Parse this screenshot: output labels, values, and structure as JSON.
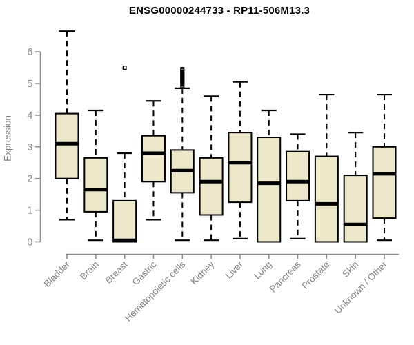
{
  "title": "ENSG00000244733 - RP11-506M13.3",
  "chart_data": {
    "type": "boxplot",
    "title": "ENSG00000244733 - RP11-506M13.3",
    "xlabel": "",
    "ylabel": "Expression",
    "ylim": [
      0,
      6.7
    ],
    "yticks": [
      0,
      1,
      2,
      3,
      4,
      5,
      6
    ],
    "grid": false,
    "legend": "none",
    "categories": [
      "Bladder",
      "Brain",
      "Breast",
      "Gastric",
      "Hematopoietic cells",
      "Kidney",
      "Liver",
      "Lung",
      "Pancreas",
      "Prostate",
      "Skin",
      "Unknown / Other"
    ],
    "boxes": [
      {
        "category": "Bladder",
        "whisker_low": 0.7,
        "q1": 2.0,
        "median": 3.1,
        "q3": 4.05,
        "whisker_high": 6.65,
        "outliers": []
      },
      {
        "category": "Brain",
        "whisker_low": 0.05,
        "q1": 0.95,
        "median": 1.65,
        "q3": 2.65,
        "whisker_high": 4.15,
        "outliers": []
      },
      {
        "category": "Breast",
        "whisker_low": 0.0,
        "q1": 0.0,
        "median": 0.05,
        "q3": 1.3,
        "whisker_high": 2.8,
        "outliers": [
          5.5
        ]
      },
      {
        "category": "Gastric",
        "whisker_low": 0.7,
        "q1": 1.9,
        "median": 2.8,
        "q3": 3.35,
        "whisker_high": 4.45,
        "outliers": []
      },
      {
        "category": "Hematopoietic cells",
        "whisker_low": 0.05,
        "q1": 1.55,
        "median": 2.25,
        "q3": 2.9,
        "whisker_high": 4.85,
        "outliers": [
          4.9,
          4.94,
          4.98,
          5.02,
          5.06,
          5.1,
          5.14,
          5.18,
          5.22,
          5.26,
          5.3,
          5.34,
          5.38,
          5.42,
          5.46
        ]
      },
      {
        "category": "Kidney",
        "whisker_low": 0.05,
        "q1": 0.85,
        "median": 1.9,
        "q3": 2.65,
        "whisker_high": 4.6,
        "outliers": []
      },
      {
        "category": "Liver",
        "whisker_low": 0.1,
        "q1": 1.25,
        "median": 2.5,
        "q3": 3.45,
        "whisker_high": 5.05,
        "outliers": []
      },
      {
        "category": "Lung",
        "whisker_low": 0.0,
        "q1": 0.0,
        "median": 1.85,
        "q3": 3.3,
        "whisker_high": 4.15,
        "outliers": []
      },
      {
        "category": "Pancreas",
        "whisker_low": 0.1,
        "q1": 1.3,
        "median": 1.9,
        "q3": 2.85,
        "whisker_high": 3.4,
        "outliers": []
      },
      {
        "category": "Prostate",
        "whisker_low": 0.0,
        "q1": 0.0,
        "median": 1.2,
        "q3": 2.7,
        "whisker_high": 4.65,
        "outliers": []
      },
      {
        "category": "Skin",
        "whisker_low": 0.0,
        "q1": 0.0,
        "median": 0.55,
        "q3": 2.1,
        "whisker_high": 3.45,
        "outliers": []
      },
      {
        "category": "Unknown / Other",
        "whisker_low": 0.05,
        "q1": 0.75,
        "median": 2.15,
        "q3": 3.0,
        "whisker_high": 4.65,
        "outliers": []
      }
    ]
  },
  "colors": {
    "box_fill": "#EDE8CC",
    "box_border": "#000000",
    "median": "#000000",
    "whisker": "#000000",
    "outlier": "#000000",
    "axis": "#8A8A8A",
    "tick_label": "#808080",
    "title": "#000000",
    "background": "#FFFFFF"
  }
}
